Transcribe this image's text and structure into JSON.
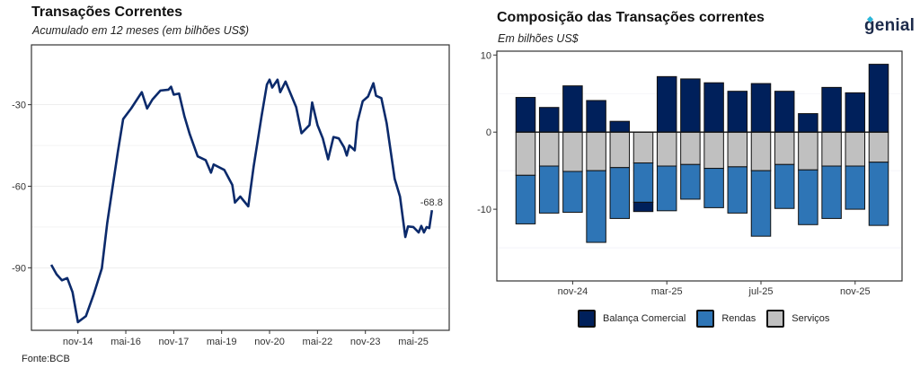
{
  "brand": {
    "logo_text": "genial"
  },
  "footer": {
    "source": "Fonte:BCB"
  },
  "chart_data": [
    {
      "type": "line",
      "title": "Transações Correntes",
      "subtitle": "Acumulado em 12 meses (em bilhões US$)",
      "xlabel": "",
      "ylabel": "",
      "ylim": [
        -113,
        -8
      ],
      "yticks": [
        -30,
        -60,
        -90
      ],
      "xticks": [
        {
          "label": "nov-14",
          "date": "2014-11"
        },
        {
          "label": "mai-16",
          "date": "2016-05"
        },
        {
          "label": "nov-17",
          "date": "2017-11"
        },
        {
          "label": "mai-19",
          "date": "2019-05"
        },
        {
          "label": "nov-20",
          "date": "2020-11"
        },
        {
          "label": "mai-22",
          "date": "2022-05"
        },
        {
          "label": "nov-23",
          "date": "2023-11"
        },
        {
          "label": "mai-25",
          "date": "2025-05"
        }
      ],
      "grid": true,
      "line_color": "#0b2a6b",
      "last_label": "-68.8",
      "series": [
        {
          "points": [
            [
              "2014-01",
              -88.9
            ],
            [
              "2014-03",
              -92.4
            ],
            [
              "2014-05",
              -94.6
            ],
            [
              "2014-07",
              -93.8
            ],
            [
              "2014-09",
              -99.0
            ],
            [
              "2014-11",
              -110.0
            ],
            [
              "2015-02",
              -107.8
            ],
            [
              "2015-05",
              -99.6
            ],
            [
              "2015-08",
              -90.2
            ],
            [
              "2015-10",
              -73.7
            ],
            [
              "2015-12",
              -60.5
            ],
            [
              "2016-02",
              -47.4
            ],
            [
              "2016-04",
              -35.3
            ],
            [
              "2016-07",
              -31.4
            ],
            [
              "2016-11",
              -25.4
            ],
            [
              "2017-01",
              -31.4
            ],
            [
              "2017-03",
              -28.1
            ],
            [
              "2017-06",
              -24.8
            ],
            [
              "2017-09",
              -24.5
            ],
            [
              "2017-10",
              -23.4
            ],
            [
              "2017-11",
              -26.3
            ],
            [
              "2018-01",
              -25.9
            ],
            [
              "2018-03",
              -34.2
            ],
            [
              "2018-05",
              -40.8
            ],
            [
              "2018-08",
              -49.0
            ],
            [
              "2018-11",
              -50.4
            ],
            [
              "2019-01",
              -55.0
            ],
            [
              "2019-02",
              -52.0
            ],
            [
              "2019-06",
              -54.0
            ],
            [
              "2019-09",
              -59.5
            ],
            [
              "2019-10",
              -66.0
            ],
            [
              "2019-12",
              -63.8
            ],
            [
              "2020-03",
              -67.4
            ],
            [
              "2020-05",
              -52.9
            ],
            [
              "2020-08",
              -34.2
            ],
            [
              "2020-10",
              -22.6
            ],
            [
              "2020-11",
              -20.8
            ],
            [
              "2020-12",
              -23.7
            ],
            [
              "2021-02",
              -20.8
            ],
            [
              "2021-03",
              -25.4
            ],
            [
              "2021-05",
              -21.5
            ],
            [
              "2021-09",
              -30.9
            ],
            [
              "2021-11",
              -40.5
            ],
            [
              "2022-02",
              -37.5
            ],
            [
              "2022-03",
              -29.2
            ],
            [
              "2022-05",
              -37.5
            ],
            [
              "2022-07",
              -42.4
            ],
            [
              "2022-09",
              -50.1
            ],
            [
              "2022-11",
              -41.9
            ],
            [
              "2023-01",
              -42.4
            ],
            [
              "2023-03",
              -45.7
            ],
            [
              "2023-04",
              -48.7
            ],
            [
              "2023-05",
              -45.0
            ],
            [
              "2023-07",
              -46.8
            ],
            [
              "2023-08",
              -36.4
            ],
            [
              "2023-10",
              -28.7
            ],
            [
              "2023-12",
              -27.0
            ],
            [
              "2024-02",
              -22.1
            ],
            [
              "2024-03",
              -26.7
            ],
            [
              "2024-05",
              -27.6
            ],
            [
              "2024-07",
              -36.9
            ],
            [
              "2024-10",
              -57.3
            ],
            [
              "2024-12",
              -63.8
            ],
            [
              "2025-02",
              -78.7
            ],
            [
              "2025-03",
              -74.8
            ],
            [
              "2025-05",
              -75.0
            ],
            [
              "2025-07",
              -77.0
            ],
            [
              "2025-08",
              -74.6
            ],
            [
              "2025-09",
              -77.0
            ],
            [
              "2025-10",
              -75.0
            ],
            [
              "2025-11",
              -75.4
            ],
            [
              "2025-12",
              -68.8
            ]
          ]
        }
      ]
    },
    {
      "type": "bar",
      "stacked": true,
      "title": "Composição das Transações correntes",
      "subtitle": "Em bilhões US$",
      "xlabel": "",
      "ylabel": "",
      "ylim": [
        -19.3,
        10.5
      ],
      "yticks": [
        10,
        0,
        -10
      ],
      "grid": true,
      "legend_position": "bottom",
      "categories": [
        "set-24",
        "out-24",
        "nov-24",
        "dez-24",
        "jan-25",
        "fev-25",
        "mar-25",
        "abr-25",
        "mai-25",
        "jun-25",
        "jul-25",
        "ago-25",
        "set-25",
        "out-25",
        "nov-25",
        "dez-25"
      ],
      "xtick_labels": [
        {
          "label": "nov-24",
          "index": 2
        },
        {
          "label": "mar-25",
          "index": 6
        },
        {
          "label": "jul-25",
          "index": 10
        },
        {
          "label": "nov-25",
          "index": 14
        }
      ],
      "series": [
        {
          "name": "Balança Comercial",
          "color": "#00205b",
          "values": [
            4.5,
            3.2,
            6.0,
            4.1,
            1.4,
            -1.2,
            7.2,
            6.9,
            6.4,
            5.3,
            6.3,
            5.3,
            2.4,
            5.8,
            5.1,
            8.8
          ]
        },
        {
          "name": "Rendas",
          "color": "#2e75b6",
          "values": [
            -6.3,
            -6.1,
            -5.3,
            -9.3,
            -6.6,
            -5.1,
            -5.8,
            -4.5,
            -5.1,
            -6.0,
            -8.5,
            -5.7,
            -7.1,
            -6.8,
            -5.6,
            -8.2
          ]
        },
        {
          "name": "Serviços",
          "color": "#c0c0c0",
          "values": [
            -5.6,
            -4.4,
            -5.1,
            -5.0,
            -4.6,
            -4.0,
            -4.4,
            -4.2,
            -4.7,
            -4.5,
            -5.0,
            -4.2,
            -4.9,
            -4.4,
            -4.4,
            -3.9
          ]
        }
      ]
    }
  ]
}
